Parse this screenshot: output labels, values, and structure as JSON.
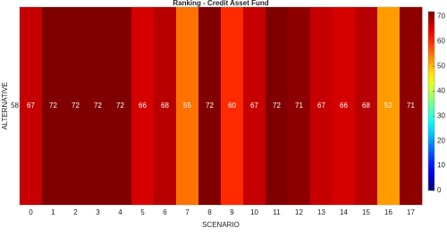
{
  "chart_data": {
    "type": "heatmap",
    "title": "Ranking -  Credit Asset Fund",
    "xlabel": "SCENARIO",
    "ylabel": "ALTERNATIVE",
    "categories": [
      "0",
      "1",
      "2",
      "3",
      "4",
      "5",
      "6",
      "7",
      "8",
      "9",
      "10",
      "11",
      "12",
      "13",
      "14",
      "15",
      "16",
      "17"
    ],
    "rows": [
      "58"
    ],
    "values": [
      67,
      72,
      72,
      72,
      72,
      66,
      68,
      55,
      72,
      60,
      67,
      72,
      71,
      67,
      66,
      68,
      52,
      71
    ],
    "colormap": "jet",
    "clim": [
      0,
      72
    ],
    "cticks": [
      0,
      10,
      20,
      30,
      40,
      50,
      60,
      70
    ]
  }
}
